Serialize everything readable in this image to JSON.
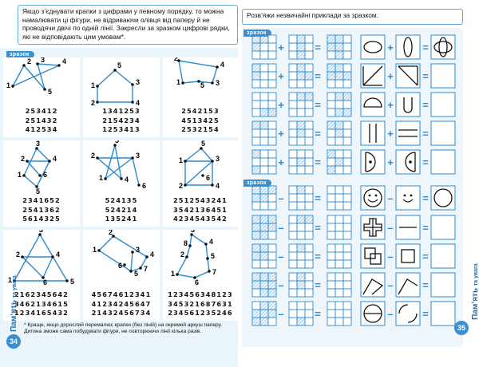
{
  "left_page": {
    "instruction": "Якщо з’єднувати крапки з цифрами у певному порядку, то можна намалювати ці фігури, не відриваючи олівця від паперу й не проводячи двічі по одній лінії. Закресли за зразком цифрові рядки, які не відповідають цим умовам*.",
    "sample_label": "зразок",
    "figures": [
      {
        "labels": [
          "1",
          "2",
          "3",
          "4",
          "5"
        ],
        "rows": [
          "253412",
          "251432",
          "412534"
        ]
      },
      {
        "labels": [
          "1",
          "2",
          "3",
          "4",
          "5"
        ],
        "rows": [
          "1341253",
          "2154234",
          "1253413"
        ]
      },
      {
        "labels": [
          "1",
          "2",
          "3",
          "4",
          "5"
        ],
        "rows": [
          "2542153",
          "4513425",
          "2532154"
        ]
      },
      {
        "labels": [
          "1",
          "2",
          "3",
          "4",
          "5",
          "6"
        ],
        "rows": [
          "2341652",
          "2541362",
          "5614325"
        ]
      },
      {
        "labels": [
          "1",
          "2",
          "3",
          "4",
          "5",
          "6"
        ],
        "rows": [
          "524135",
          "524214",
          "135241"
        ]
      },
      {
        "labels": [
          "1",
          "2",
          "3",
          "4",
          "5",
          "6"
        ],
        "rows": [
          "2512543241",
          "3542136451",
          "4234543542"
        ]
      },
      {
        "labels": [
          "1",
          "2",
          "3",
          "4",
          "5",
          "6"
        ],
        "rows": [
          "2162345642",
          "3462134615",
          "1234165432"
        ]
      },
      {
        "labels": [
          "1",
          "2",
          "3",
          "4",
          "5",
          "6",
          "7"
        ],
        "rows": [
          "45674612341",
          "41234245647",
          "21432456734"
        ]
      },
      {
        "labels": [
          "1",
          "2",
          "3",
          "4",
          "5",
          "6",
          "7",
          "8"
        ],
        "rows": [
          "123456348123",
          "345321687631",
          "234561235246"
        ]
      }
    ],
    "footnote": "* Краще, якщо дорослий перемалює крапки (без ліній) на окремий аркуш паперу. Дитина зможе сама побудувати фігури, не повторюючи лінії кілька разів.",
    "page_number": "34",
    "side_title": "Пам’ять",
    "side_sub": "та увага"
  },
  "right_page": {
    "instruction": "Розв’яжи незвичайні приклади за зразком.",
    "sample_label": "зразок",
    "plus": "+",
    "minus": "–",
    "equals": "=",
    "page_number": "35",
    "side_title": "Пам’ять",
    "side_sub": "та увага"
  }
}
